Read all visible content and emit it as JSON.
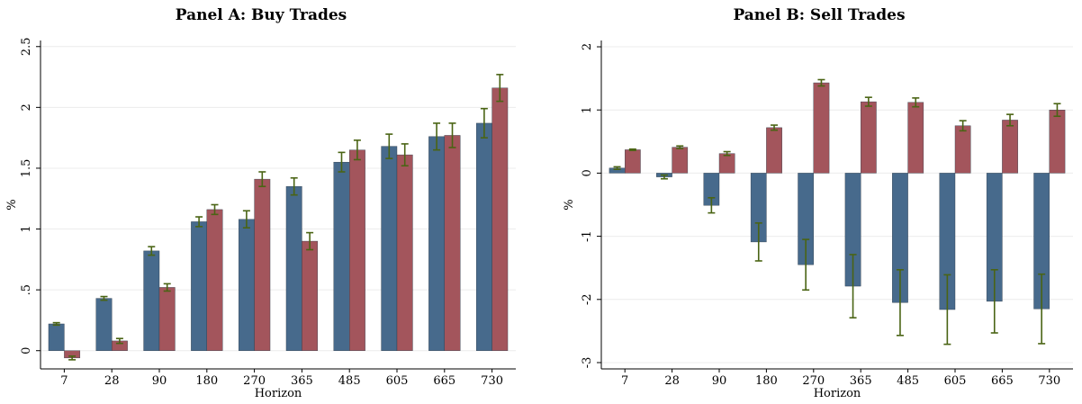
{
  "colors": {
    "series1": "#476a8c",
    "series2": "#a3555c",
    "error": "#4a6414",
    "grid": "#ececec"
  },
  "chart_data": [
    {
      "type": "bar",
      "title": "Panel A: Buy Trades",
      "xlabel": "Horizon",
      "ylabel": "%",
      "categories": [
        "7",
        "28",
        "90",
        "180",
        "270",
        "365",
        "485",
        "605",
        "665",
        "730"
      ],
      "ylim": [
        -0.15,
        2.55
      ],
      "yticks": [
        0,
        0.5,
        1,
        1.5,
        2,
        2.5
      ],
      "ytick_labels": [
        "0",
        ".5",
        "1",
        "1.5",
        "2",
        "2.5"
      ],
      "series": [
        {
          "values": [
            0.22,
            0.43,
            0.82,
            1.06,
            1.08,
            1.35,
            1.55,
            1.68,
            1.76,
            1.87
          ],
          "err": [
            0.01,
            0.015,
            0.035,
            0.04,
            0.07,
            0.07,
            0.08,
            0.1,
            0.11,
            0.12
          ]
        },
        {
          "values": [
            -0.06,
            0.08,
            0.52,
            1.16,
            1.41,
            0.9,
            1.65,
            1.61,
            1.77,
            2.16
          ],
          "err": [
            0.015,
            0.02,
            0.03,
            0.04,
            0.06,
            0.07,
            0.08,
            0.09,
            0.1,
            0.11
          ]
        }
      ],
      "grid": true
    },
    {
      "type": "bar",
      "title": "Panel B: Sell Trades",
      "xlabel": "Horizon",
      "ylabel": "%",
      "categories": [
        "7",
        "28",
        "90",
        "180",
        "270",
        "365",
        "485",
        "605",
        "665",
        "730"
      ],
      "ylim": [
        -3.1,
        2.1
      ],
      "yticks": [
        -3,
        -2,
        -1,
        0,
        1,
        2
      ],
      "ytick_labels": [
        "-3",
        "-2",
        "-1",
        "0",
        "1",
        "2"
      ],
      "series": [
        {
          "values": [
            0.08,
            -0.06,
            -0.51,
            -1.09,
            -1.45,
            -1.79,
            -2.05,
            -2.16,
            -2.03,
            -2.15
          ],
          "err": [
            0.02,
            0.03,
            0.12,
            0.3,
            0.4,
            0.5,
            0.52,
            0.55,
            0.5,
            0.55
          ]
        },
        {
          "values": [
            0.37,
            0.41,
            0.31,
            0.72,
            1.43,
            1.13,
            1.12,
            0.75,
            0.84,
            1.0
          ],
          "err": [
            0.01,
            0.02,
            0.03,
            0.04,
            0.05,
            0.07,
            0.07,
            0.08,
            0.09,
            0.1
          ]
        }
      ],
      "grid": true
    }
  ]
}
